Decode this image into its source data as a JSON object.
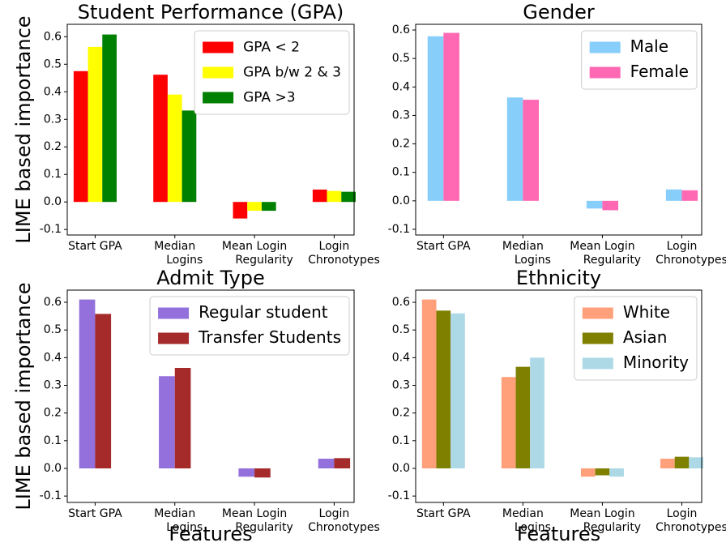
{
  "chart_data": [
    {
      "type": "bar",
      "title": "Student Performance (GPA)",
      "ylabel": "LIME based importance",
      "categories": [
        "Start GPA",
        "Median\nLogins",
        "Mean Login\nRegularity",
        "Login\nChronotypes"
      ],
      "series": [
        {
          "name": "GPA < 2",
          "color": "#ff0000",
          "values": [
            0.475,
            0.462,
            -0.06,
            0.045
          ]
        },
        {
          "name": "GPA b/w 2 & 3",
          "color": "#ffff00",
          "values": [
            0.563,
            0.39,
            -0.032,
            0.04
          ]
        },
        {
          "name": "GPA >3",
          "color": "#008000",
          "values": [
            0.608,
            0.332,
            -0.032,
            0.037
          ]
        }
      ],
      "ylim": [
        -0.12,
        0.645
      ],
      "yticks": [
        -0.1,
        {
          "value": 0,
          "label": "0.0"
        },
        0.1,
        0.2,
        0.3,
        0.4,
        0.5,
        0.6
      ],
      "legend": "upper right"
    },
    {
      "type": "bar",
      "title": "Gender",
      "categories": [
        "Start GPA",
        "Median\nLogins",
        "Mean Login\nRegularity",
        "Login\nChronotypes"
      ],
      "series": [
        {
          "name": "Male",
          "color": "#87cefa",
          "values": [
            0.578,
            0.363,
            -0.027,
            0.04
          ]
        },
        {
          "name": "Female",
          "color": "#ff69b4",
          "values": [
            0.59,
            0.355,
            -0.033,
            0.037
          ]
        }
      ],
      "ylim": [
        -0.12,
        0.62
      ],
      "yticks": [
        -0.1,
        {
          "value": 0,
          "label": "0.0"
        },
        0.1,
        0.2,
        0.3,
        0.4,
        0.5,
        0.6
      ],
      "legend": "upper right"
    },
    {
      "type": "bar",
      "title": "Admit Type",
      "ylabel": "LIME based importance",
      "xlabel": "Features",
      "categories": [
        "Start GPA",
        "Median\nLogins",
        "Mean Login\nRegularity",
        "Login\nChronotypes"
      ],
      "series": [
        {
          "name": "Regular student",
          "color": "#9370db",
          "values": [
            0.61,
            0.333,
            -0.03,
            0.035
          ]
        },
        {
          "name": "Transfer Students",
          "color": "#a52a2a",
          "values": [
            0.558,
            0.363,
            -0.033,
            0.037
          ]
        }
      ],
      "ylim": [
        -0.123,
        0.644
      ],
      "yticks": [
        -0.1,
        {
          "value": 0,
          "label": "0.0"
        },
        0.1,
        0.2,
        0.3,
        0.4,
        0.5,
        0.6
      ],
      "legend": "upper right"
    },
    {
      "type": "bar",
      "title": "Ethnicity",
      "xlabel": "Features",
      "categories": [
        "Start GPA",
        "Median\nLogins",
        "Mean Login\nRegularity",
        "Login\nChronotypes"
      ],
      "series": [
        {
          "name": "White",
          "color": "#ffa07a",
          "values": [
            0.61,
            0.33,
            -0.03,
            0.035
          ]
        },
        {
          "name": "Asian",
          "color": "#808000",
          "values": [
            0.57,
            0.367,
            -0.025,
            0.042
          ]
        },
        {
          "name": "Minority",
          "color": "#add8e6",
          "values": [
            0.56,
            0.4,
            -0.03,
            0.04
          ]
        }
      ],
      "ylim": [
        -0.123,
        0.644
      ],
      "yticks": [
        -0.1,
        {
          "value": 0,
          "label": "0.0"
        },
        0.1,
        0.2,
        0.3,
        0.4,
        0.5,
        0.6
      ],
      "legend": "upper right"
    }
  ]
}
